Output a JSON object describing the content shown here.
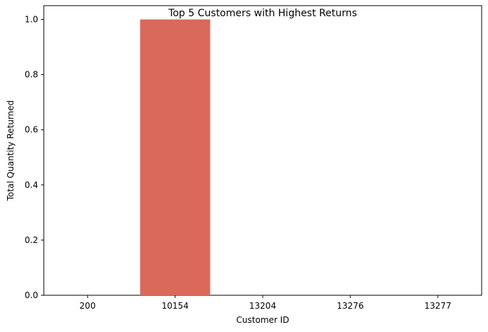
{
  "chart_data": {
    "type": "bar",
    "title": "Top 5 Customers with Highest Returns",
    "xlabel": "Customer ID",
    "ylabel": "Total Quantity Returned",
    "categories": [
      "200",
      "10154",
      "13204",
      "13276",
      "13277"
    ],
    "values": [
      0,
      1.0,
      0,
      0,
      0
    ],
    "bar_colors": [
      "#d9695a",
      "#d9695a",
      "#d9695a",
      "#d9695a",
      "#d9695a"
    ],
    "ylim": [
      0,
      1.05
    ],
    "yticks": [
      "0.0",
      "0.2",
      "0.4",
      "0.6",
      "0.8",
      "1.0"
    ],
    "ytick_values": [
      0,
      0.2,
      0.4,
      0.6,
      0.8,
      1.0
    ],
    "grid": false
  }
}
